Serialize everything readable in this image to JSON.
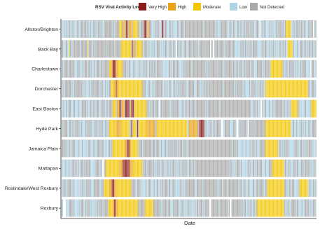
{
  "chart_data": {
    "type": "heatmap",
    "title": "",
    "xlabel": "Date",
    "ylabel": "",
    "legend": {
      "title": "RSV Viral Activity Level",
      "position": "top",
      "entries": [
        {
          "label": "Very High",
          "color": "#8b1a1a"
        },
        {
          "label": "High",
          "color": "#e8a317"
        },
        {
          "label": "Moderate",
          "color": "#f2c600"
        },
        {
          "label": "Low",
          "color": "#aed4e6"
        },
        {
          "label": "Not Detected",
          "color": "#a9a9a9"
        }
      ]
    },
    "neighborhoods": [
      {
        "name": "Allston/Brighton",
        "vh": [
          [
            76,
            78
          ],
          [
            97,
            100
          ],
          [
            118,
            120
          ]
        ],
        "h": [
          [
            72,
            75
          ],
          [
            79,
            83
          ],
          [
            101,
            103
          ]
        ],
        "m": [
          [
            68,
            71
          ],
          [
            84,
            90
          ],
          [
            264,
            270
          ]
        ],
        "l": [
          [
            0,
            50
          ],
          [
            104,
            140
          ],
          [
            180,
            300
          ]
        ],
        "gaps": [
          [
            233,
            234
          ],
          [
            296,
            297
          ]
        ]
      },
      {
        "name": "Back Bay",
        "vh": [
          [
            83,
            84
          ]
        ],
        "h": [
          [
            85,
            87
          ]
        ],
        "m": [
          [
            9,
            10
          ],
          [
            30,
            31
          ],
          [
            70,
            82
          ],
          [
            88,
            95
          ],
          [
            266,
            272
          ]
        ],
        "l": [
          [
            0,
            20
          ],
          [
            100,
            150
          ],
          [
            200,
            300
          ]
        ],
        "gaps": [
          [
            135,
            136
          ],
          [
            175,
            176
          ],
          [
            178,
            180
          ]
        ]
      },
      {
        "name": "Charlestown",
        "vh": [
          [
            60,
            64
          ]
        ],
        "h": [
          [
            58,
            60
          ],
          [
            64,
            66
          ]
        ],
        "m": [
          [
            56,
            58
          ],
          [
            66,
            72
          ],
          [
            246,
            260
          ]
        ],
        "l": [
          [
            0,
            40
          ],
          [
            80,
            150
          ],
          [
            210,
            300
          ]
        ],
        "gaps": [
          [
            293,
            294
          ]
        ]
      },
      {
        "name": "Dorchester",
        "vh": [
          [
            64,
            65
          ]
        ],
        "h": [
          [
            62,
            64
          ],
          [
            65,
            67
          ]
        ],
        "m": [
          [
            58,
            62
          ],
          [
            67,
            95
          ],
          [
            240,
            290
          ]
        ],
        "l": [
          [
            0,
            55
          ],
          [
            100,
            170
          ],
          [
            210,
            300
          ]
        ],
        "gaps": []
      },
      {
        "name": "East Boston",
        "vh": [
          [
            68,
            70
          ],
          [
            75,
            80
          ],
          [
            82,
            85
          ]
        ],
        "h": [
          [
            65,
            68
          ],
          [
            71,
            74
          ],
          [
            81,
            82
          ]
        ],
        "m": [
          [
            60,
            64
          ],
          [
            86,
            100
          ],
          [
            270,
            278
          ],
          [
            294,
            300
          ]
        ],
        "l": [
          [
            0,
            58
          ],
          [
            102,
            160
          ],
          [
            220,
            300
          ]
        ],
        "gaps": [
          [
            115,
            116
          ],
          [
            234,
            236
          ]
        ]
      },
      {
        "name": "Hyde Park",
        "vh": [
          [
            82,
            83
          ],
          [
            89,
            90
          ],
          [
            162,
            168
          ]
        ],
        "h": [
          [
            64,
            70
          ],
          [
            100,
            110
          ],
          [
            150,
            160
          ]
        ],
        "m": [
          [
            56,
            64
          ],
          [
            70,
            80
          ],
          [
            84,
            88
          ],
          [
            91,
            100
          ],
          [
            112,
            148
          ],
          [
            240,
            270
          ]
        ],
        "l": [
          [
            0,
            55
          ],
          [
            170,
            220
          ],
          [
            270,
            300
          ]
        ],
        "gaps": [
          [
            188,
            190
          ],
          [
            206,
            208
          ],
          [
            219,
            220
          ]
        ]
      },
      {
        "name": "Jamaica Plain",
        "vh": [
          [
            77,
            80
          ]
        ],
        "h": [
          [
            74,
            77
          ],
          [
            80,
            82
          ]
        ],
        "m": [
          [
            60,
            74
          ],
          [
            82,
            90
          ],
          [
            240,
            255
          ]
        ],
        "l": [
          [
            0,
            58
          ],
          [
            92,
            150
          ],
          [
            200,
            300
          ]
        ],
        "gaps": []
      },
      {
        "name": "Mattapan",
        "vh": [
          [
            72,
            80
          ]
        ],
        "h": [
          [
            68,
            72
          ],
          [
            80,
            84
          ]
        ],
        "m": [
          [
            52,
            68
          ],
          [
            84,
            95
          ],
          [
            248,
            262
          ]
        ],
        "l": [
          [
            0,
            50
          ],
          [
            96,
            160
          ],
          [
            200,
            300
          ]
        ],
        "gaps": [
          [
            48,
            50
          ]
        ]
      },
      {
        "name": "Roslindale/West Roxbury",
        "vh": [
          [
            59,
            62
          ]
        ],
        "h": [
          [
            56,
            59
          ],
          [
            62,
            65
          ]
        ],
        "m": [
          [
            50,
            56
          ],
          [
            65,
            82
          ],
          [
            242,
            262
          ],
          [
            280,
            290
          ]
        ],
        "l": [
          [
            0,
            48
          ],
          [
            84,
            150
          ],
          [
            205,
            300
          ]
        ],
        "gaps": []
      },
      {
        "name": "Roxbury",
        "vh": [
          [
            62,
            64
          ]
        ],
        "h": [
          [
            60,
            62
          ],
          [
            64,
            66
          ]
        ],
        "m": [
          [
            55,
            60
          ],
          [
            66,
            90
          ],
          [
            98,
            108
          ],
          [
            230,
            262
          ]
        ],
        "l": [
          [
            0,
            52
          ],
          [
            110,
            170
          ],
          [
            210,
            300
          ]
        ],
        "gaps": [
          [
            2,
            5
          ],
          [
            174,
            176
          ],
          [
            198,
            200
          ]
        ]
      }
    ],
    "n_dates": 300
  }
}
